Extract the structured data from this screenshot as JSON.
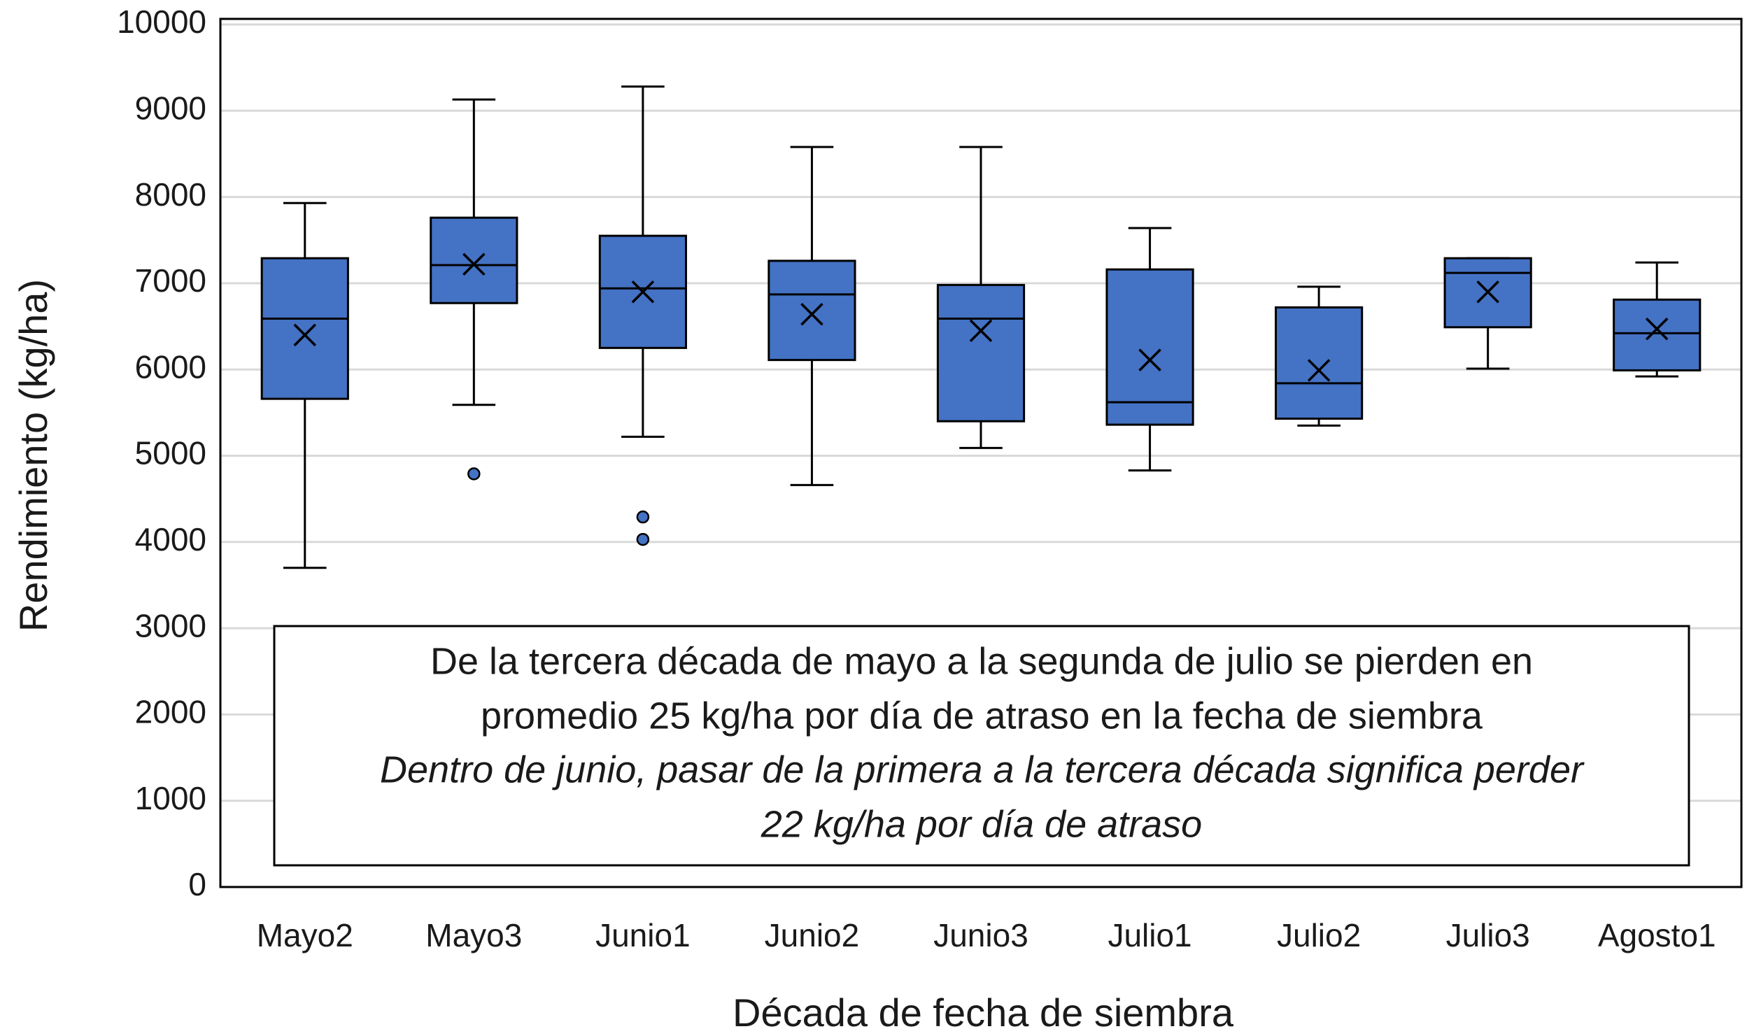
{
  "chart_data": {
    "type": "box",
    "x_label": "Década de fecha de siembra",
    "y_label": "Rendimiento (kg/ha)",
    "categories": [
      "Mayo2",
      "Mayo3",
      "Junio1",
      "Junio2",
      "Junio3",
      "Julio1",
      "Julio2",
      "Julio3",
      "Agosto1"
    ],
    "min": [
      3700,
      5590,
      5220,
      4660,
      5090,
      4830,
      5350,
      6010,
      5920
    ],
    "q1": [
      5660,
      6770,
      6250,
      6110,
      5400,
      5360,
      5430,
      6490,
      5990
    ],
    "median": [
      6590,
      7210,
      6940,
      6870,
      6590,
      5620,
      5840,
      7120,
      6420
    ],
    "q3": [
      7290,
      7760,
      7550,
      7260,
      6980,
      7160,
      6720,
      7290,
      6810
    ],
    "max": [
      7930,
      9130,
      9280,
      8580,
      8580,
      7640,
      6960,
      7290,
      7240
    ],
    "mean": [
      6400,
      7220,
      6900,
      6640,
      6450,
      6110,
      5990,
      6900,
      6470
    ],
    "outliers": [
      [],
      [
        4790
      ],
      [
        4290,
        4030
      ],
      [],
      [],
      [],
      [],
      [],
      []
    ],
    "color": "#4472c4",
    "ylim": [
      0,
      10000
    ],
    "yticks": [
      0,
      1000,
      2000,
      3000,
      4000,
      5000,
      6000,
      7000,
      8000,
      9000,
      10000
    ],
    "grid": true,
    "annotation": {
      "text": [
        "De la tercera década de mayo a la segunda de julio se pierden en",
        "promedio 25 kg/ha por día de atraso en la fecha de siembra"
      ],
      "italic_text": [
        "Dentro de junio, pasar de la primera a la tercera década significa perder",
        "22 kg/ha por día de atraso"
      ]
    }
  }
}
